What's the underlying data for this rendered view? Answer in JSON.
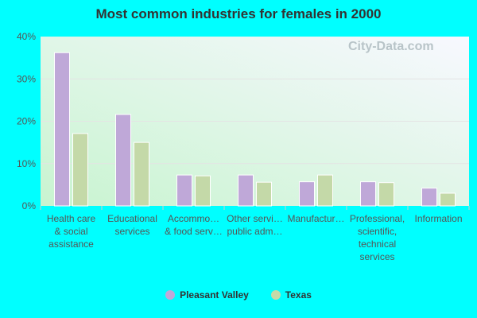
{
  "chart_data": {
    "type": "bar",
    "title": "Most common industries for females in 2000",
    "categories": [
      [
        "Health care",
        "& social",
        "assistance"
      ],
      [
        "Educational",
        "services"
      ],
      [
        "Accommo…",
        "& food serv…"
      ],
      [
        "Other servi…",
        "public adm…"
      ],
      [
        "Manufactur…"
      ],
      [
        "Professional,",
        "scientific,",
        "technical",
        "services"
      ],
      [
        "Information"
      ]
    ],
    "series": [
      {
        "name": "Pleasant Valley",
        "color": "#bfa8d8",
        "values": [
          36.2,
          21.6,
          7.3,
          7.3,
          5.7,
          5.7,
          4.2
        ]
      },
      {
        "name": "Texas",
        "color": "#c4d9a8",
        "values": [
          17.1,
          15.0,
          7.1,
          5.6,
          7.3,
          5.5,
          3.0
        ]
      }
    ],
    "ylim": [
      0,
      40
    ],
    "yticks": [
      "0%",
      "10%",
      "20%",
      "30%",
      "40%"
    ],
    "grid": true,
    "legend": "bottom"
  },
  "watermark": "City-Data.com"
}
